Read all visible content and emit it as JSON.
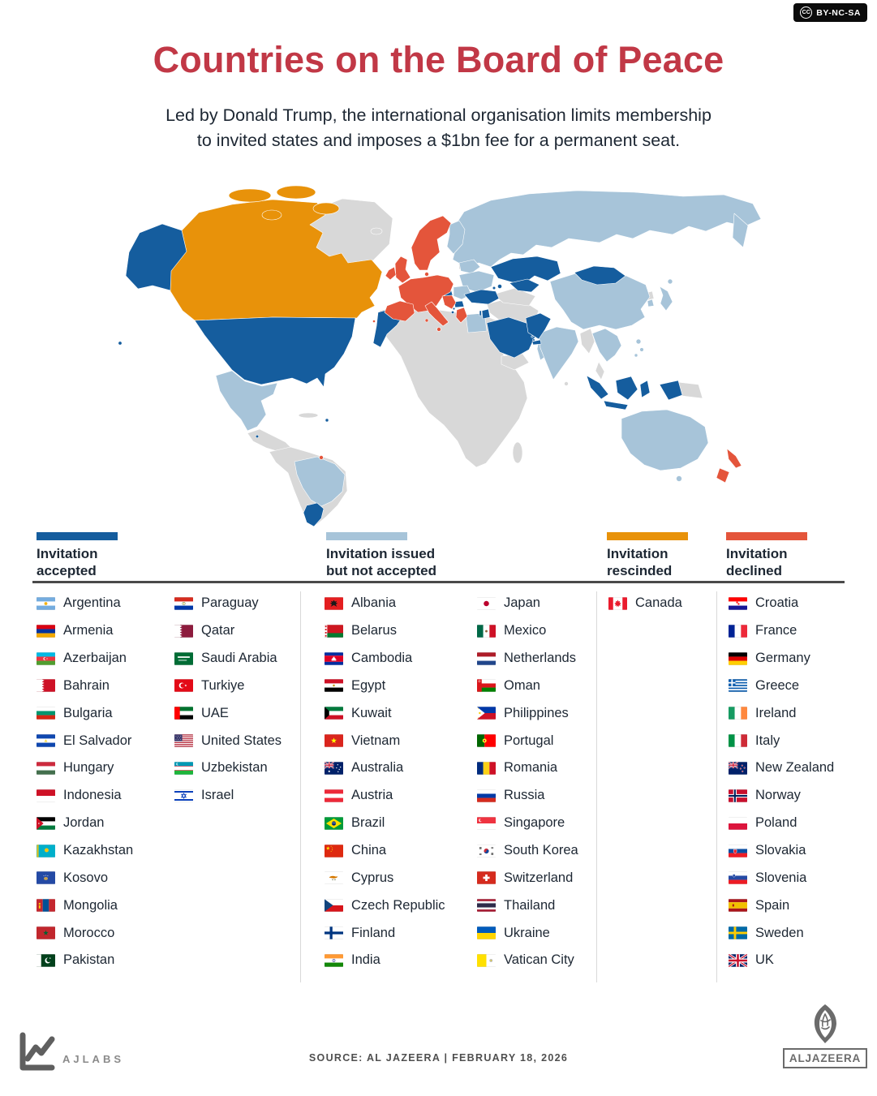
{
  "badge": {
    "icon": "CC",
    "label": "BY-NC-SA"
  },
  "header": {
    "title": "Countries on the Board of Peace",
    "subtitle_line1": "Led by Donald Trump, the international organisation limits membership",
    "subtitle_line2": "to invited states and imposes a $1bn fee for a permanent seat."
  },
  "colors": {
    "title": "#C13846",
    "ink": "#1D2733",
    "accepted": "#155D9E",
    "issued": "#A7C4D9",
    "rescinded": "#E8920A",
    "declined": "#E4553B",
    "not_invited": "#D8D8D8"
  },
  "groups": [
    {
      "id": "accepted",
      "legend_lines": [
        "Invitation",
        "accepted"
      ],
      "color": "#155D9E",
      "columns": [
        [
          {
            "name": "Argentina",
            "flag": "argentina"
          },
          {
            "name": "Armenia",
            "flag": "armenia"
          },
          {
            "name": "Azerbaijan",
            "flag": "azerbaijan"
          },
          {
            "name": "Bahrain",
            "flag": "bahrain"
          },
          {
            "name": "Bulgaria",
            "flag": "bulgaria"
          },
          {
            "name": "El Salvador",
            "flag": "elsalvador"
          },
          {
            "name": "Hungary",
            "flag": "hungary"
          },
          {
            "name": "Indonesia",
            "flag": "indonesia"
          },
          {
            "name": "Jordan",
            "flag": "jordan"
          },
          {
            "name": "Kazakhstan",
            "flag": "kazakhstan"
          },
          {
            "name": "Kosovo",
            "flag": "kosovo"
          },
          {
            "name": "Mongolia",
            "flag": "mongolia"
          },
          {
            "name": "Morocco",
            "flag": "morocco"
          },
          {
            "name": "Pakistan",
            "flag": "pakistan"
          }
        ],
        [
          {
            "name": "Paraguay",
            "flag": "paraguay"
          },
          {
            "name": "Qatar",
            "flag": "qatar"
          },
          {
            "name": "Saudi Arabia",
            "flag": "saudiarabia"
          },
          {
            "name": "Turkiye",
            "flag": "turkiye"
          },
          {
            "name": "UAE",
            "flag": "uae"
          },
          {
            "name": "United States",
            "flag": "usa"
          },
          {
            "name": "Uzbekistan",
            "flag": "uzbekistan"
          },
          {
            "name": "Israel",
            "flag": "israel"
          }
        ]
      ]
    },
    {
      "id": "issued",
      "legend_lines": [
        "Invitation issued",
        "but not accepted"
      ],
      "color": "#A7C4D9",
      "columns": [
        [
          {
            "name": "Albania",
            "flag": "albania"
          },
          {
            "name": "Belarus",
            "flag": "belarus"
          },
          {
            "name": "Cambodia",
            "flag": "cambodia"
          },
          {
            "name": "Egypt",
            "flag": "egypt"
          },
          {
            "name": "Kuwait",
            "flag": "kuwait"
          },
          {
            "name": "Vietnam",
            "flag": "vietnam"
          },
          {
            "name": "Australia",
            "flag": "australia"
          },
          {
            "name": "Austria",
            "flag": "austria"
          },
          {
            "name": "Brazil",
            "flag": "brazil"
          },
          {
            "name": "China",
            "flag": "china"
          },
          {
            "name": "Cyprus",
            "flag": "cyprus"
          },
          {
            "name": "Czech Republic",
            "flag": "czech"
          },
          {
            "name": "Finland",
            "flag": "finland"
          },
          {
            "name": "India",
            "flag": "india"
          }
        ],
        [
          {
            "name": "Japan",
            "flag": "japan"
          },
          {
            "name": "Mexico",
            "flag": "mexico"
          },
          {
            "name": "Netherlands",
            "flag": "netherlands"
          },
          {
            "name": "Oman",
            "flag": "oman"
          },
          {
            "name": "Philippines",
            "flag": "philippines"
          },
          {
            "name": "Portugal",
            "flag": "portugal"
          },
          {
            "name": "Romania",
            "flag": "romania"
          },
          {
            "name": "Russia",
            "flag": "russia"
          },
          {
            "name": "Singapore",
            "flag": "singapore"
          },
          {
            "name": "South Korea",
            "flag": "southkorea"
          },
          {
            "name": "Switzerland",
            "flag": "switzerland"
          },
          {
            "name": "Thailand",
            "flag": "thailand"
          },
          {
            "name": "Ukraine",
            "flag": "ukraine"
          },
          {
            "name": "Vatican City",
            "flag": "vatican"
          }
        ]
      ]
    },
    {
      "id": "rescinded",
      "legend_lines": [
        "Invitation",
        "rescinded"
      ],
      "color": "#E8920A",
      "columns": [
        [
          {
            "name": "Canada",
            "flag": "canada"
          }
        ]
      ]
    },
    {
      "id": "declined",
      "legend_lines": [
        "Invitation",
        "declined"
      ],
      "color": "#E4553B",
      "columns": [
        [
          {
            "name": "Croatia",
            "flag": "croatia"
          },
          {
            "name": "France",
            "flag": "france"
          },
          {
            "name": "Germany",
            "flag": "germany"
          },
          {
            "name": "Greece",
            "flag": "greece"
          },
          {
            "name": "Ireland",
            "flag": "ireland"
          },
          {
            "name": "Italy",
            "flag": "italy"
          },
          {
            "name": "New Zealand",
            "flag": "newzealand"
          },
          {
            "name": "Norway",
            "flag": "norway"
          },
          {
            "name": "Poland",
            "flag": "poland"
          },
          {
            "name": "Slovakia",
            "flag": "slovakia"
          },
          {
            "name": "Slovenia",
            "flag": "slovenia"
          },
          {
            "name": "Spain",
            "flag": "spain"
          },
          {
            "name": "Sweden",
            "flag": "sweden"
          },
          {
            "name": "UK",
            "flag": "uk"
          }
        ]
      ]
    }
  ],
  "footer": {
    "ajlabs": "AJLABS",
    "source": "SOURCE:  AL JAZEERA  |  FEBRUARY 18, 2026",
    "brand": "ALJAZEERA"
  }
}
